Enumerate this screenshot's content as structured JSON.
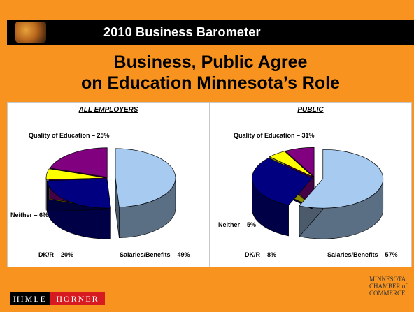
{
  "header": {
    "bar_title": "2010 Business Barometer",
    "headline_line1": "Business, Public Agree",
    "headline_line2": "on Education Minnesota’s Role"
  },
  "colors": {
    "frame": "#f7931e",
    "salaries": "#a6caf0",
    "quality": "#000080",
    "neither": "#ffff00",
    "dkr": "#800080"
  },
  "chart_data": [
    {
      "type": "pie",
      "title": "ALL EMPLOYERS",
      "categories": [
        "Salaries/Benefits",
        "Quality of Education",
        "Neither",
        "DK/R"
      ],
      "values": [
        49,
        25,
        6,
        20
      ],
      "labels": {
        "salaries": "Salaries/Benefits – 49%",
        "quality": "Quality of Education – 25%",
        "neither": "Neither – 6%",
        "dkr": "DK/R – 20%"
      }
    },
    {
      "type": "pie",
      "title": "PUBLIC",
      "categories": [
        "Salaries/Benefits",
        "Quality of Education",
        "Neither",
        "DK/R"
      ],
      "values": [
        57,
        31,
        5,
        8
      ],
      "labels": {
        "salaries": "Salaries/Benefits – 57%",
        "quality": "Quality of Education – 31%",
        "neither": "Neither – 5%",
        "dkr": "DK/R – 8%"
      }
    }
  ],
  "footer": {
    "himle": "HIMLE",
    "horner": "HORNER",
    "chamber_line1": "MINNESOTA",
    "chamber_line2": "CHAMBER of",
    "chamber_line3": "COMMERCE"
  }
}
